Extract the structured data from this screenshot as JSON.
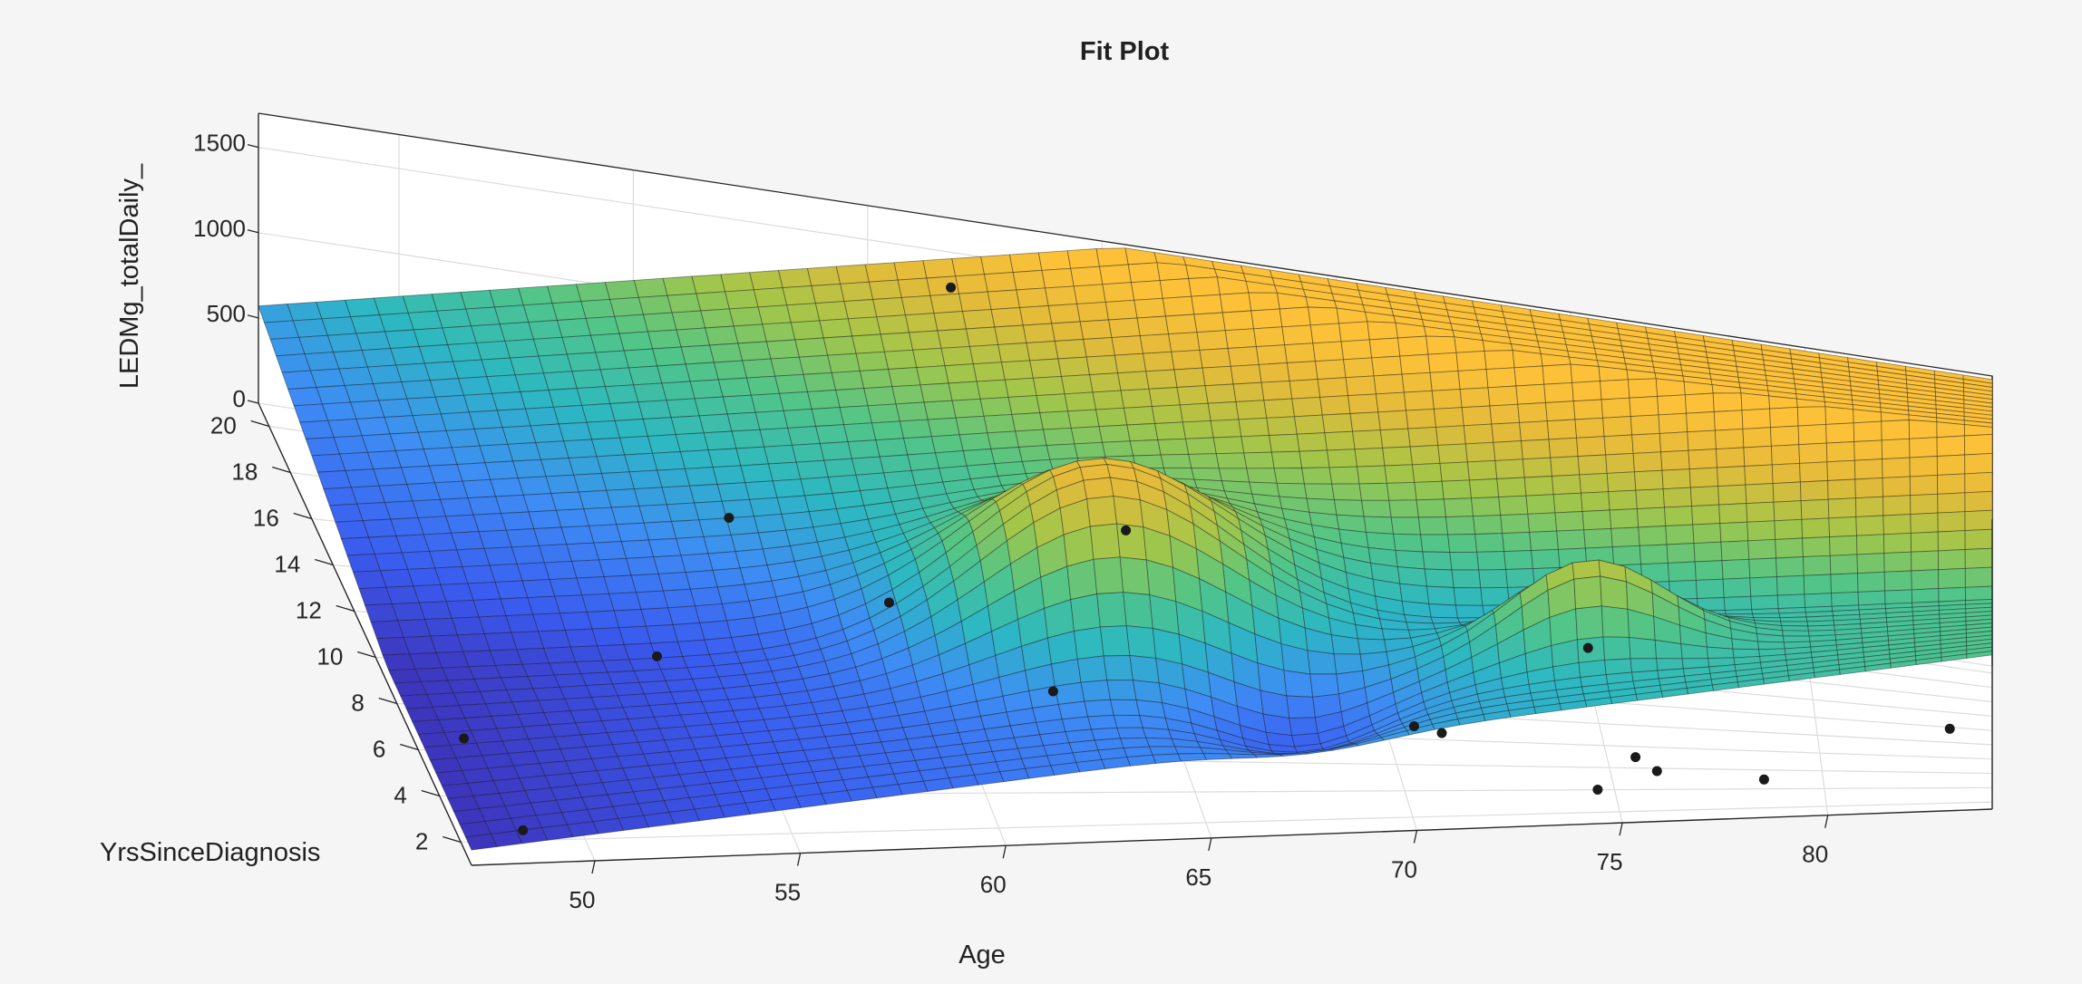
{
  "chart_data": {
    "type": "surface",
    "title": "Fit Plot",
    "xlabel": "Age",
    "ylabel": "YrsSinceDiagnosis",
    "zlabel": "LEDMg_totalDaily_",
    "x_ticks": [
      "50",
      "55",
      "60",
      "65",
      "70",
      "75",
      "80"
    ],
    "y_ticks": [
      "2",
      "4",
      "6",
      "8",
      "10",
      "12",
      "14",
      "16",
      "18",
      "20"
    ],
    "z_ticks": [
      "0",
      "500",
      "1000",
      "1500"
    ],
    "xlim": [
      47,
      84
    ],
    "ylim": [
      1,
      21
    ],
    "zlim": [
      0,
      1700
    ],
    "grid": true,
    "colormap": [
      "#3e26a8",
      "#3a5bef",
      "#3e8df4",
      "#2db8c2",
      "#53c587",
      "#a2c64a",
      "#e3bb3a",
      "#fcc139"
    ],
    "points": [
      {
        "age": 48.5,
        "yrs": 2.0,
        "z": 60
      },
      {
        "age": 48.0,
        "yrs": 5.7,
        "z": 110
      },
      {
        "age": 53.5,
        "yrs": 10.3,
        "z": 60
      },
      {
        "age": 56.5,
        "yrs": 17.8,
        "z": 80
      },
      {
        "age": 58.5,
        "yrs": 8.5,
        "z": 640
      },
      {
        "age": 62.0,
        "yrs": 6.5,
        "z": 350
      },
      {
        "age": 64.0,
        "yrs": 8.7,
        "z": 1100
      },
      {
        "age": 71.0,
        "yrs": 5.3,
        "z": 240
      },
      {
        "age": 70.5,
        "yrs": 7.0,
        "z": 150
      },
      {
        "age": 74.5,
        "yrs": 6.0,
        "z": 700
      },
      {
        "age": 75.5,
        "yrs": 4.0,
        "z": 190
      },
      {
        "age": 76.0,
        "yrs": 3.8,
        "z": 120
      },
      {
        "age": 74.5,
        "yrs": 2.5,
        "z": 100
      },
      {
        "age": 78.5,
        "yrs": 2.3,
        "z": 150
      },
      {
        "age": 83.0,
        "yrs": 5.5,
        "z": 280
      },
      {
        "age": 61.5,
        "yrs": 19.0,
        "z": 1480
      }
    ]
  }
}
